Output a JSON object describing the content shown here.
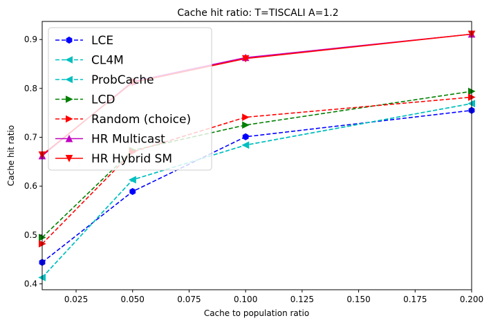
{
  "chart_data": {
    "type": "line",
    "title": "Cache hit ratio: T=TISCALI A=1.2",
    "xlabel": "Cache to population ratio",
    "ylabel": "Cache hit ratio",
    "xlim": [
      0.01,
      0.2
    ],
    "ylim": [
      0.388,
      0.937
    ],
    "xticks": [
      "0.025",
      "0.050",
      "0.075",
      "0.100",
      "0.125",
      "0.150",
      "0.175",
      "0.200"
    ],
    "yticks": [
      "0.4",
      "0.5",
      "0.6",
      "0.7",
      "0.8",
      "0.9"
    ],
    "grid": false,
    "legend_position": "upper-left",
    "x": [
      0.01,
      0.05,
      0.1,
      0.2
    ],
    "series": [
      {
        "name": "LCE",
        "values": [
          0.444,
          0.589,
          0.701,
          0.755
        ],
        "color": "#0000ff",
        "dash": "dashed",
        "marker": "hexagon"
      },
      {
        "name": "CL4M",
        "values": [
          0.413,
          0.613,
          0.684,
          0.769
        ],
        "color": "#00bfbf",
        "dash": "dashed",
        "marker": "triangle-left"
      },
      {
        "name": "ProbCache",
        "values": [
          0.413,
          0.613,
          0.684,
          0.769
        ],
        "color": "#00bfbf",
        "dash": "dashed",
        "marker": "triangle-left"
      },
      {
        "name": "LCD",
        "values": [
          0.495,
          0.673,
          0.725,
          0.794
        ],
        "color": "#008000",
        "dash": "dashed",
        "marker": "triangle-right"
      },
      {
        "name": "Random (choice)",
        "values": [
          0.482,
          0.67,
          0.741,
          0.782
        ],
        "color": "#ff0000",
        "dash": "dashed",
        "marker": "triangle-right"
      },
      {
        "name": "HR Multicast",
        "values": [
          0.662,
          0.814,
          0.863,
          0.911
        ],
        "color": "#bf00bf",
        "dash": "solid",
        "marker": "triangle-up"
      },
      {
        "name": "HR Hybrid SM",
        "values": [
          0.664,
          0.812,
          0.861,
          0.911
        ],
        "color": "#ff0000",
        "dash": "solid",
        "marker": "triangle-down"
      }
    ]
  }
}
